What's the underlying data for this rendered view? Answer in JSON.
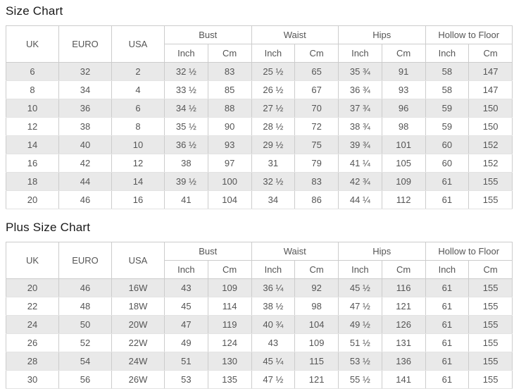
{
  "page": {
    "size_chart_title": "Size Chart",
    "plus_size_chart_title": "Plus Size Chart"
  },
  "columns": {
    "uk": "UK",
    "euro": "EURO",
    "usa": "USA",
    "groups": [
      "Bust",
      "Waist",
      "Hips",
      "Hollow to Floor"
    ],
    "sub": [
      "Inch",
      "Cm"
    ]
  },
  "size_chart": {
    "rows": [
      [
        "6",
        "32",
        "2",
        "32 ½",
        "83",
        "25 ½",
        "65",
        "35 ¾",
        "91",
        "58",
        "147"
      ],
      [
        "8",
        "34",
        "4",
        "33 ½",
        "85",
        "26 ½",
        "67",
        "36 ¾",
        "93",
        "58",
        "147"
      ],
      [
        "10",
        "36",
        "6",
        "34 ½",
        "88",
        "27 ½",
        "70",
        "37 ¾",
        "96",
        "59",
        "150"
      ],
      [
        "12",
        "38",
        "8",
        "35 ½",
        "90",
        "28 ½",
        "72",
        "38 ¾",
        "98",
        "59",
        "150"
      ],
      [
        "14",
        "40",
        "10",
        "36 ½",
        "93",
        "29 ½",
        "75",
        "39 ¾",
        "101",
        "60",
        "152"
      ],
      [
        "16",
        "42",
        "12",
        "38",
        "97",
        "31",
        "79",
        "41 ¼",
        "105",
        "60",
        "152"
      ],
      [
        "18",
        "44",
        "14",
        "39 ½",
        "100",
        "32 ½",
        "83",
        "42 ¾",
        "109",
        "61",
        "155"
      ],
      [
        "20",
        "46",
        "16",
        "41",
        "104",
        "34",
        "86",
        "44 ¼",
        "112",
        "61",
        "155"
      ]
    ]
  },
  "plus_size_chart": {
    "rows": [
      [
        "20",
        "46",
        "16W",
        "43",
        "109",
        "36 ¼",
        "92",
        "45 ½",
        "116",
        "61",
        "155"
      ],
      [
        "22",
        "48",
        "18W",
        "45",
        "114",
        "38 ½",
        "98",
        "47 ½",
        "121",
        "61",
        "155"
      ],
      [
        "24",
        "50",
        "20W",
        "47",
        "119",
        "40 ¾",
        "104",
        "49 ½",
        "126",
        "61",
        "155"
      ],
      [
        "26",
        "52",
        "22W",
        "49",
        "124",
        "43",
        "109",
        "51 ½",
        "131",
        "61",
        "155"
      ],
      [
        "28",
        "54",
        "24W",
        "51",
        "130",
        "45 ¼",
        "115",
        "53 ½",
        "136",
        "61",
        "155"
      ],
      [
        "30",
        "56",
        "26W",
        "53",
        "135",
        "47 ½",
        "121",
        "55 ½",
        "141",
        "61",
        "155"
      ]
    ]
  },
  "colors": {
    "stripe": "#e9e9e9",
    "border": "#cccccc",
    "cell_text": "#555555",
    "title_text": "#1a1a1a"
  }
}
